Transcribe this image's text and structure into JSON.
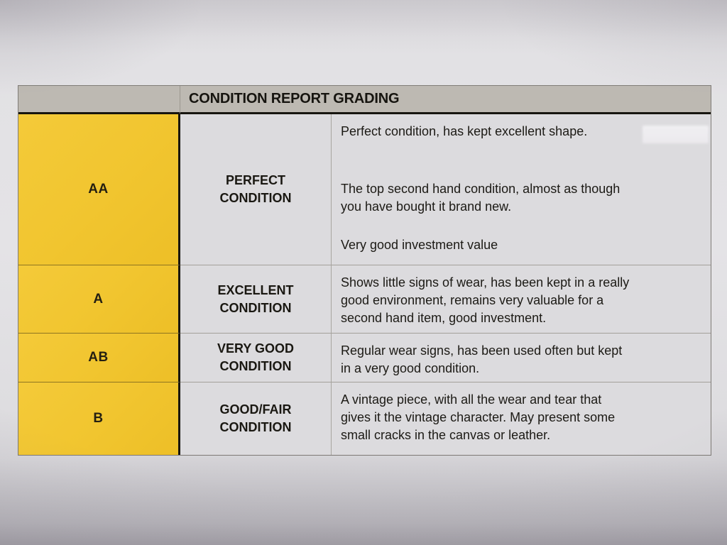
{
  "document": {
    "header": {
      "title": "CONDITION REPORT GRADING"
    },
    "rows": [
      {
        "grade": "AA",
        "condition": "PERFECT\nCONDITION",
        "paragraphs": [
          "Perfect condition, has kept excellent shape.",
          "The top second hand condition, almost as though\nyou have bought it brand new.",
          "Very good investment value"
        ]
      },
      {
        "grade": "A",
        "condition": "EXCELLENT\nCONDITION",
        "paragraphs": [
          "Shows little signs of wear, has been kept in a really\ngood environment, remains very valuable for a\nsecond hand item, good investment."
        ]
      },
      {
        "grade": "AB",
        "condition": "VERY GOOD\nCONDITION",
        "paragraphs": [
          "Regular wear signs, has been used often but kept\nin a very good condition."
        ]
      },
      {
        "grade": "B",
        "condition": "GOOD/FAIR\nCONDITION",
        "paragraphs": [
          "A vintage piece, with all the wear and tear that\ngives it the vintage character. May present some\nsmall cracks in the canvas or leather."
        ]
      }
    ],
    "colors": {
      "grade_column_yellow": "#f1c52f",
      "header_bar_gray": "#bdb9b2",
      "cell_background_gray": "#dcdbde",
      "paper_gray": "#e1e0e3",
      "rule_black": "#17150f"
    }
  }
}
